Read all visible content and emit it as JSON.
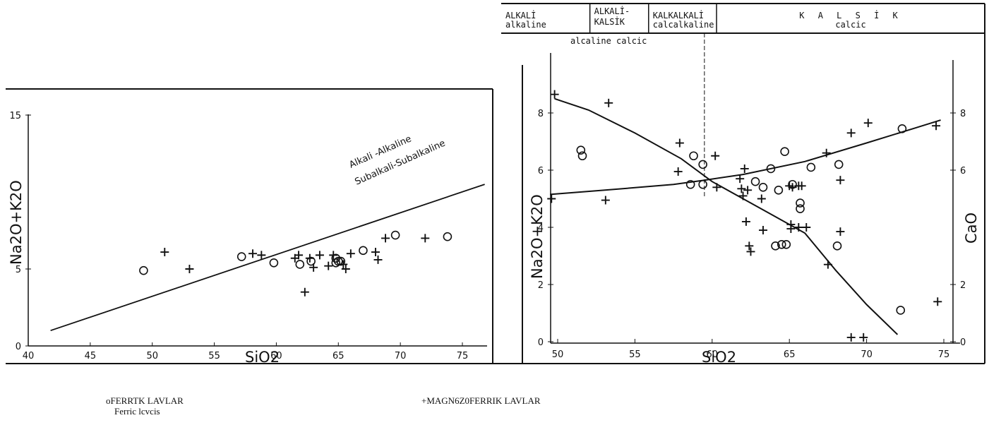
{
  "colors": {
    "ink": "#111111",
    "paper": "#ffffff"
  },
  "legend": {
    "ferric": {
      "symbol": "o",
      "label": "FERRTK  LAVLAR",
      "sub": "Ferric  lcvcis"
    },
    "magnetic": {
      "symbol": "+",
      "label": "MAGN6Z0FERRIK     LAVLAR"
    }
  },
  "chart_data": [
    {
      "type": "scatter",
      "xlabel": "SiO2",
      "ylabel": "Na2O+K2O",
      "xlim": [
        40,
        77
      ],
      "ylim": [
        0,
        15
      ],
      "xticks": [
        40,
        45,
        50,
        55,
        60,
        65,
        70,
        75
      ],
      "yticks": [
        0,
        5,
        15
      ],
      "annotations": [
        "Alkali -Alkaline",
        "Subalkali-Subalkaline"
      ],
      "divider_line": [
        [
          41.8,
          1.0
        ],
        [
          76.8,
          10.5
        ]
      ],
      "series": [
        {
          "name": "FERRTK  LAVLAR",
          "marker": "circle",
          "points": [
            [
              49.3,
              4.9
            ],
            [
              57.2,
              5.8
            ],
            [
              59.8,
              5.4
            ],
            [
              61.9,
              5.3
            ],
            [
              62.8,
              5.5
            ],
            [
              64.8,
              5.7
            ],
            [
              65.0,
              5.5
            ],
            [
              64.8,
              5.4
            ],
            [
              65.2,
              5.5
            ],
            [
              67.0,
              6.2
            ],
            [
              69.6,
              7.2
            ],
            [
              73.8,
              7.1
            ]
          ]
        },
        {
          "name": "MAGN6Z0FERRIK     LAVLAR",
          "marker": "plus",
          "points": [
            [
              51.0,
              6.1
            ],
            [
              53.0,
              5.0
            ],
            [
              58.1,
              6.0
            ],
            [
              58.8,
              5.9
            ],
            [
              61.5,
              5.7
            ],
            [
              61.8,
              5.9
            ],
            [
              62.3,
              3.5
            ],
            [
              62.7,
              5.7
            ],
            [
              63.0,
              5.1
            ],
            [
              63.5,
              5.9
            ],
            [
              64.2,
              5.2
            ],
            [
              64.6,
              5.9
            ],
            [
              65.4,
              5.3
            ],
            [
              65.6,
              5.0
            ],
            [
              66.0,
              6.0
            ],
            [
              68.0,
              6.1
            ],
            [
              68.2,
              5.6
            ],
            [
              68.8,
              7.0
            ],
            [
              72.0,
              7.0
            ]
          ]
        }
      ]
    },
    {
      "type": "scatter",
      "xlabel": "SiO2",
      "ylabel": "Na2O+K2O",
      "y2label": "CaO",
      "xlim": [
        49.5,
        75.5
      ],
      "ylim": [
        0,
        9.5
      ],
      "y2lim": [
        0,
        9.5
      ],
      "xticks": [
        50,
        55,
        60,
        65,
        70,
        75
      ],
      "yticks": [
        0,
        2,
        4,
        6,
        8
      ],
      "y2ticks": [
        0,
        2,
        6,
        8
      ],
      "bands": [
        {
          "label": "ALKALİ",
          "sub": "alkaline",
          "from": 49.5,
          "to": 53.0
        },
        {
          "label": "ALKALİ- KALSİK",
          "sub": "alcaline calcic",
          "from": 53.0,
          "to": 56.8
        },
        {
          "label": "KALKALKALİ",
          "sub": "calcalkaline",
          "from": 56.8,
          "to": 61.2
        },
        {
          "label": "K A L S İ K",
          "sub": "calcic",
          "from": 61.2,
          "to": 75.5
        }
      ],
      "crossover_sio2": 59.5,
      "trend_alkali": [
        [
          49.5,
          5.15
        ],
        [
          53.0,
          5.3
        ],
        [
          57.5,
          5.5
        ],
        [
          59.5,
          5.65
        ],
        [
          62.0,
          5.85
        ],
        [
          66.0,
          6.3
        ],
        [
          70.0,
          6.95
        ],
        [
          73.0,
          7.45
        ],
        [
          74.8,
          7.75
        ]
      ],
      "trend_cao": [
        [
          49.8,
          8.5
        ],
        [
          52.0,
          8.1
        ],
        [
          55.0,
          7.3
        ],
        [
          58.0,
          6.4
        ],
        [
          60.0,
          5.6
        ],
        [
          62.0,
          5.0
        ],
        [
          64.0,
          4.4
        ],
        [
          66.0,
          3.8
        ],
        [
          68.0,
          2.5
        ],
        [
          70.0,
          1.3
        ],
        [
          72.0,
          0.25
        ]
      ],
      "series": [
        {
          "name": "FERRTK  LAVLAR",
          "marker": "circle",
          "points": [
            [
              51.5,
              6.7
            ],
            [
              51.6,
              6.5
            ],
            [
              58.6,
              5.5
            ],
            [
              58.8,
              6.5
            ],
            [
              59.4,
              6.2
            ],
            [
              59.4,
              5.5
            ],
            [
              62.8,
              5.6
            ],
            [
              63.3,
              5.4
            ],
            [
              63.8,
              6.05
            ],
            [
              64.1,
              3.35
            ],
            [
              64.3,
              5.3
            ],
            [
              64.5,
              3.4
            ],
            [
              64.7,
              6.65
            ],
            [
              64.8,
              3.4
            ],
            [
              65.2,
              5.5
            ],
            [
              65.7,
              4.85
            ],
            [
              65.7,
              4.65
            ],
            [
              66.4,
              6.1
            ],
            [
              68.2,
              6.2
            ],
            [
              68.1,
              3.35
            ],
            [
              72.3,
              7.45
            ],
            [
              72.2,
              1.1
            ]
          ]
        },
        {
          "name": "MAGN6Z0FERRIK     LAVLAR",
          "marker": "plus",
          "points": [
            [
              49.8,
              8.65
            ],
            [
              49.6,
              5.0
            ],
            [
              53.3,
              8.35
            ],
            [
              53.1,
              4.95
            ],
            [
              57.9,
              6.95
            ],
            [
              57.8,
              5.95
            ],
            [
              60.2,
              6.5
            ],
            [
              60.3,
              5.4
            ],
            [
              61.8,
              5.7
            ],
            [
              62.1,
              6.05
            ],
            [
              61.9,
              5.35
            ],
            [
              62.0,
              5.1
            ],
            [
              62.3,
              5.3
            ],
            [
              62.2,
              4.2
            ],
            [
              62.4,
              3.35
            ],
            [
              62.5,
              3.15
            ],
            [
              63.2,
              5.0
            ],
            [
              63.3,
              3.9
            ],
            [
              65.0,
              5.45
            ],
            [
              65.2,
              5.4
            ],
            [
              65.6,
              5.45
            ],
            [
              65.8,
              5.45
            ],
            [
              65.1,
              4.1
            ],
            [
              65.1,
              3.95
            ],
            [
              65.6,
              4.0
            ],
            [
              66.1,
              4.0
            ],
            [
              67.4,
              6.6
            ],
            [
              67.5,
              2.7
            ],
            [
              68.3,
              5.65
            ],
            [
              68.3,
              3.85
            ],
            [
              69.0,
              7.3
            ],
            [
              69.0,
              0.15
            ],
            [
              70.1,
              7.65
            ],
            [
              69.8,
              0.15
            ],
            [
              74.5,
              7.55
            ],
            [
              74.6,
              1.4
            ]
          ]
        }
      ]
    }
  ]
}
